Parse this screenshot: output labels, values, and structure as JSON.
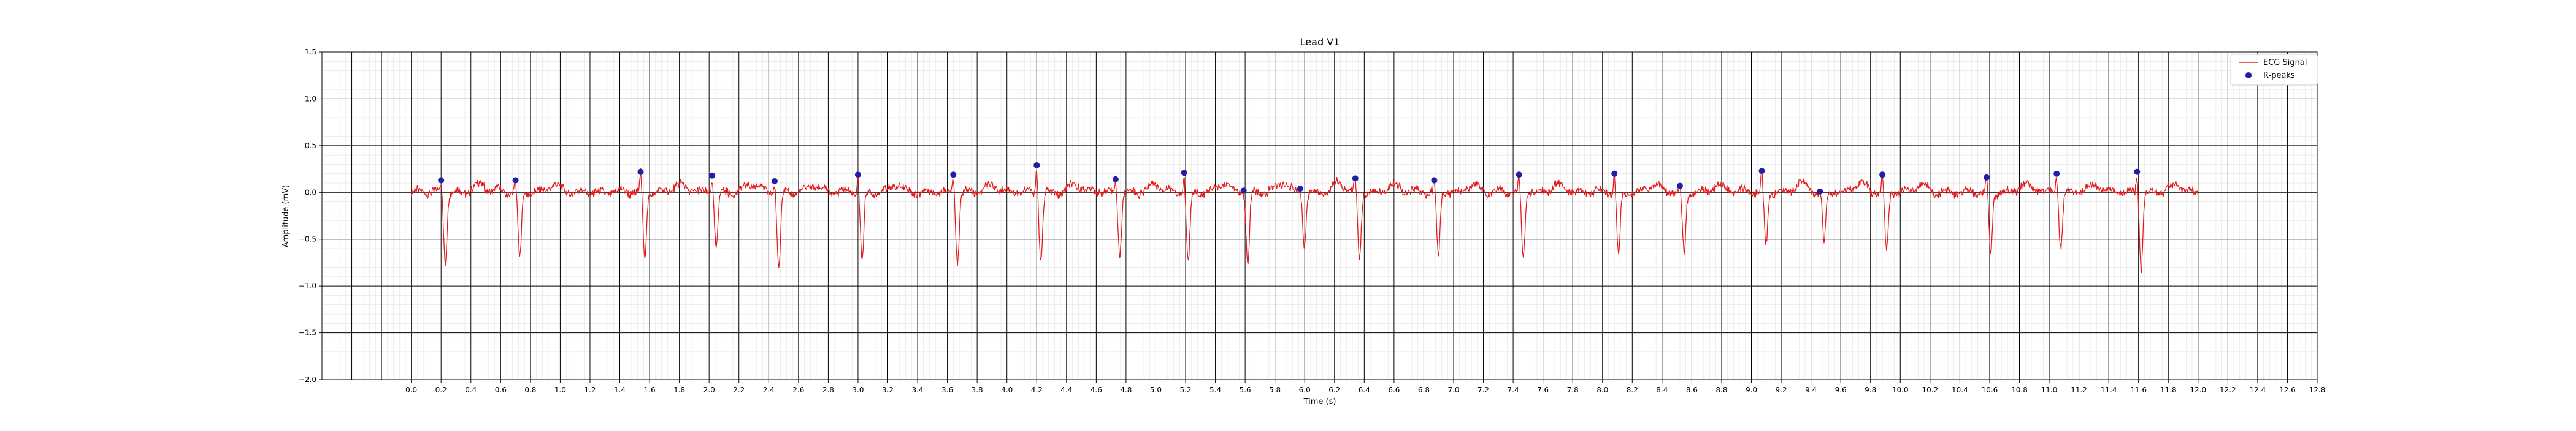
{
  "chart_data": {
    "type": "line",
    "title": "Lead V1",
    "xlabel": "Time (s)",
    "ylabel": "Amplitude (mV)",
    "xlim": [
      -0.6,
      12.8
    ],
    "ylim": [
      -2.0,
      1.5
    ],
    "x_ticks": [
      "0.0",
      "0.2",
      "0.4",
      "0.6",
      "0.8",
      "1.0",
      "1.2",
      "1.4",
      "1.6",
      "1.8",
      "2.0",
      "2.2",
      "2.4",
      "2.6",
      "2.8",
      "3.0",
      "3.2",
      "3.4",
      "3.6",
      "3.8",
      "4.0",
      "4.2",
      "4.4",
      "4.6",
      "4.8",
      "5.0",
      "5.2",
      "5.4",
      "5.6",
      "5.8",
      "6.0",
      "6.2",
      "6.4",
      "6.6",
      "6.8",
      "7.0",
      "7.2",
      "7.4",
      "7.6",
      "7.8",
      "8.0",
      "8.2",
      "8.4",
      "8.6",
      "8.8",
      "9.0",
      "9.2",
      "9.4",
      "9.6",
      "9.8",
      "10.0",
      "10.2",
      "10.4",
      "10.6",
      "10.8",
      "11.0",
      "11.2",
      "11.4",
      "11.6",
      "11.8",
      "12.0",
      "12.2",
      "12.4",
      "12.6",
      "12.8"
    ],
    "y_ticks": [
      "1.5",
      "1.0",
      "0.5",
      "0.0",
      "−0.5",
      "−1.0",
      "−1.5",
      "−2.0"
    ],
    "grid": "ecg-paper major 0.2 s / 0.5 mV, minor 0.04 s / 0.1 mV",
    "legend_position": "top-right",
    "legend": [
      {
        "label": "ECG Signal",
        "color": "#e41a1c"
      },
      {
        "label": "R-peaks",
        "color": "#1f1fa8"
      }
    ],
    "series": [
      {
        "name": "ECG Signal",
        "color": "#e41a1c",
        "beats": [
          {
            "t": 0.2,
            "r": 0.13,
            "s": -0.72
          },
          {
            "t": 0.7,
            "r": 0.13,
            "s": -0.7
          },
          {
            "t": 1.54,
            "r": 0.22,
            "s": -0.7
          },
          {
            "t": 2.02,
            "r": 0.18,
            "s": -0.58
          },
          {
            "t": 2.44,
            "r": 0.12,
            "s": -0.8
          },
          {
            "t": 3.0,
            "r": 0.19,
            "s": -0.72
          },
          {
            "t": 3.64,
            "r": 0.19,
            "s": -0.75
          },
          {
            "t": 4.2,
            "r": 0.29,
            "s": -0.72
          },
          {
            "t": 4.73,
            "r": 0.14,
            "s": -0.66
          },
          {
            "t": 5.19,
            "r": 0.21,
            "s": -0.75
          },
          {
            "t": 5.59,
            "r": 0.02,
            "s": -0.77
          },
          {
            "t": 5.97,
            "r": 0.04,
            "s": -0.55
          },
          {
            "t": 6.34,
            "r": 0.15,
            "s": -0.7
          },
          {
            "t": 6.87,
            "r": 0.13,
            "s": -0.68
          },
          {
            "t": 7.44,
            "r": 0.19,
            "s": -0.68
          },
          {
            "t": 8.08,
            "r": 0.2,
            "s": -0.66
          },
          {
            "t": 8.52,
            "r": 0.07,
            "s": -0.65
          },
          {
            "t": 9.07,
            "r": 0.23,
            "s": -0.55
          },
          {
            "t": 9.46,
            "r": 0.01,
            "s": -0.52
          },
          {
            "t": 9.88,
            "r": 0.19,
            "s": -0.62
          },
          {
            "t": 10.58,
            "r": 0.16,
            "s": -0.63
          },
          {
            "t": 11.05,
            "r": 0.2,
            "s": -0.57
          },
          {
            "t": 11.59,
            "r": 0.22,
            "s": -0.8
          }
        ],
        "t_start": 0.0,
        "t_end": 12.0
      },
      {
        "name": "R-peaks",
        "type": "scatter",
        "color": "#1f1fa8",
        "x": [
          0.2,
          0.7,
          1.54,
          2.02,
          2.44,
          3.0,
          3.64,
          4.2,
          4.73,
          5.19,
          5.59,
          5.97,
          6.34,
          6.87,
          7.44,
          8.08,
          8.52,
          9.07,
          9.46,
          9.88,
          10.58,
          11.05,
          11.59
        ],
        "y": [
          0.13,
          0.13,
          0.22,
          0.18,
          0.12,
          0.19,
          0.19,
          0.29,
          0.14,
          0.21,
          0.02,
          0.04,
          0.15,
          0.13,
          0.19,
          0.2,
          0.07,
          0.23,
          0.01,
          0.19,
          0.16,
          0.2,
          0.22
        ]
      }
    ]
  }
}
